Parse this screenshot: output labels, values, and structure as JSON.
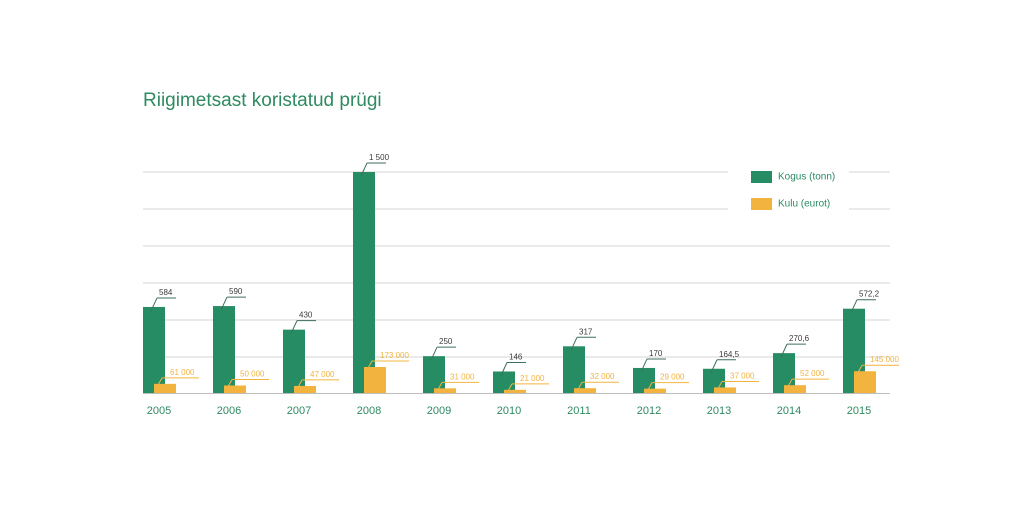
{
  "chart_data": {
    "type": "bar",
    "title": "Riigimetsast koristatud prügi",
    "categories": [
      "2005",
      "2006",
      "2007",
      "2008",
      "2009",
      "2010",
      "2011",
      "2012",
      "2013",
      "2014",
      "2015"
    ],
    "series": [
      {
        "name": "Kogus (tonn)",
        "color": "#268c64",
        "values": [
          584,
          590,
          430,
          1500,
          250,
          146,
          317,
          170,
          164.5,
          270.6,
          572.2
        ],
        "labels": [
          "584",
          "590",
          "430",
          "1 500",
          "250",
          "146",
          "317",
          "170",
          "164,5",
          "270,6",
          "572,2"
        ]
      },
      {
        "name": "Kulu (eurot)",
        "color": "#f3b43f",
        "values": [
          61000,
          50000,
          47000,
          173000,
          31000,
          21000,
          32000,
          29000,
          37000,
          52000,
          145000
        ],
        "labels": [
          "61 000",
          "50 000",
          "47 000",
          "173 000",
          "31 000",
          "21 000",
          "32 000",
          "29 000",
          "37 000",
          "52 000",
          "145 000"
        ]
      }
    ],
    "ylim": [
      0,
      1500
    ],
    "grid": true,
    "legend_position": "top-right"
  }
}
